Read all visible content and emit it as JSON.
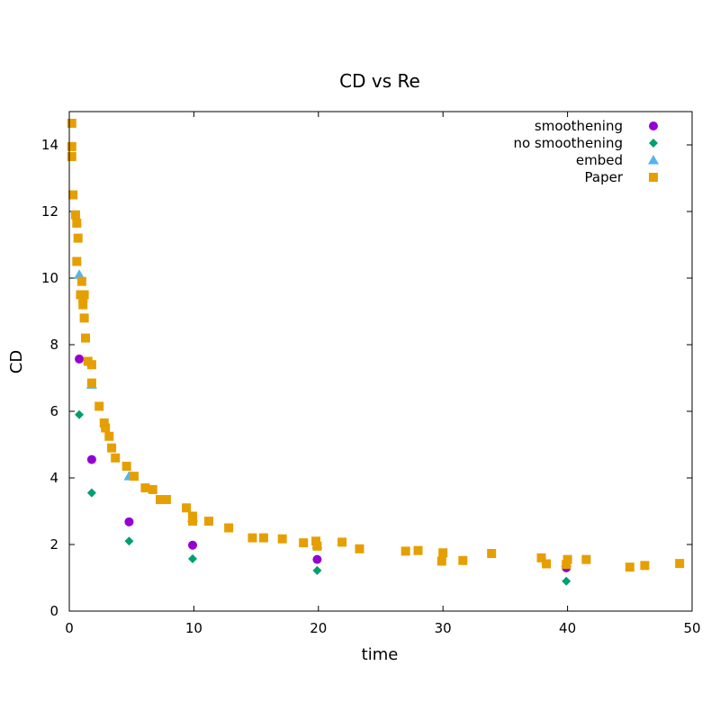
{
  "chart_data": {
    "type": "scatter",
    "title": "CD vs Re",
    "xlabel": "time",
    "ylabel": "CD",
    "xlim": [
      0,
      50
    ],
    "ylim": [
      0,
      15
    ],
    "xticks": [
      0,
      10,
      20,
      30,
      40,
      50
    ],
    "yticks": [
      0,
      2,
      4,
      6,
      8,
      10,
      12,
      14
    ],
    "grid": false,
    "legend_position": "top-right",
    "series": [
      {
        "name": "smoothening",
        "marker": "circle",
        "color": "#9400d3",
        "x": [
          0.8,
          1.8,
          4.8,
          9.9,
          19.9,
          39.9
        ],
        "y": [
          7.57,
          4.55,
          2.68,
          1.98,
          1.55,
          1.3
        ]
      },
      {
        "name": "no smoothening",
        "marker": "diamond",
        "color": "#009e73",
        "x": [
          0.8,
          1.8,
          4.8,
          9.9,
          19.9,
          39.9
        ],
        "y": [
          5.9,
          3.55,
          2.1,
          1.57,
          1.22,
          0.9
        ]
      },
      {
        "name": "embed",
        "marker": "triangle",
        "color": "#56b4e9",
        "x": [
          0.8,
          1.8,
          4.8,
          9.9,
          19.9,
          39.9
        ],
        "y": [
          10.1,
          6.8,
          4.05,
          2.8,
          2.0,
          1.45
        ]
      },
      {
        "name": "Paper",
        "marker": "square",
        "color": "#e69f00",
        "x": [
          0.2,
          0.2,
          0.2,
          0.3,
          0.5,
          0.6,
          0.7,
          0.6,
          0.9,
          1.0,
          1.1,
          1.1,
          1.2,
          1.2,
          1.3,
          1.5,
          1.8,
          1.8,
          2.4,
          2.8,
          2.9,
          3.2,
          3.4,
          3.7,
          4.6,
          5.2,
          6.1,
          6.7,
          7.3,
          7.8,
          9.4,
          9.9,
          9.9,
          11.2,
          12.8,
          14.7,
          15.6,
          17.1,
          18.8,
          19.8,
          19.9,
          21.9,
          23.3,
          27.0,
          28.0,
          29.9,
          30.0,
          31.6,
          33.9,
          37.9,
          38.3,
          39.9,
          40.0,
          41.5,
          45.0,
          46.2,
          49.0
        ],
        "y": [
          14.65,
          13.95,
          13.65,
          12.5,
          11.9,
          11.65,
          11.2,
          10.5,
          9.5,
          9.9,
          9.4,
          9.2,
          8.8,
          9.5,
          8.2,
          7.5,
          7.4,
          6.85,
          6.15,
          5.65,
          5.5,
          5.25,
          4.9,
          4.6,
          4.35,
          4.05,
          3.7,
          3.65,
          3.35,
          3.35,
          3.1,
          2.85,
          2.7,
          2.7,
          2.5,
          2.2,
          2.2,
          2.17,
          2.05,
          2.1,
          1.95,
          2.07,
          1.87,
          1.8,
          1.82,
          1.5,
          1.75,
          1.52,
          1.73,
          1.6,
          1.42,
          1.4,
          1.55,
          1.55,
          1.32,
          1.37,
          1.43
        ]
      }
    ]
  }
}
